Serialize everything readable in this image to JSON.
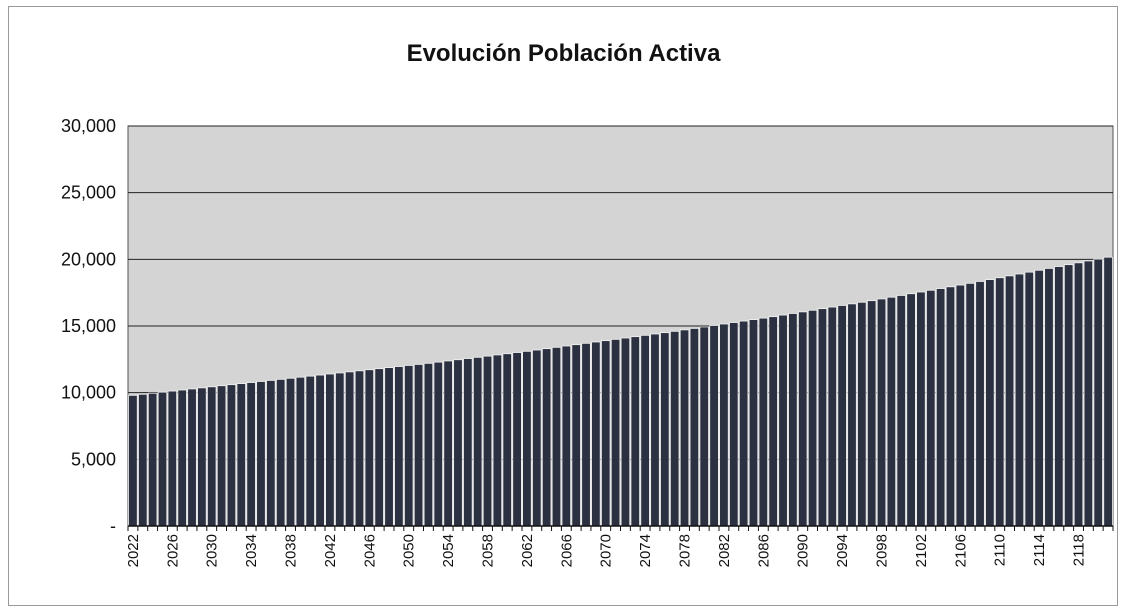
{
  "chart_data": {
    "type": "bar",
    "title": "Evolución Población Activa",
    "xlabel": "",
    "ylabel": "",
    "ylim": [
      0,
      30000
    ],
    "yticks": [
      {
        "value": 0,
        "label": "-"
      },
      {
        "value": 5000,
        "label": "5,000"
      },
      {
        "value": 10000,
        "label": "10,000"
      },
      {
        "value": 15000,
        "label": "15,000"
      },
      {
        "value": 20000,
        "label": "20,000"
      },
      {
        "value": 25000,
        "label": "25,000"
      },
      {
        "value": 30000,
        "label": "30,000"
      }
    ],
    "x_tick_labels": [
      "2022",
      "2026",
      "2030",
      "2034",
      "2038",
      "2042",
      "2046",
      "2050",
      "2054",
      "2058",
      "2062",
      "2066",
      "2070",
      "2074",
      "2078",
      "2082",
      "2086",
      "2090",
      "2094",
      "2098",
      "2102",
      "2106",
      "2110",
      "2114",
      "2118"
    ],
    "x_start": 2022,
    "x_end": 2121,
    "grid": true,
    "legend": "none",
    "values": [
      9800,
      9880,
      9960,
      10040,
      10120,
      10200,
      10280,
      10360,
      10440,
      10520,
      10600,
      10680,
      10760,
      10840,
      10920,
      11000,
      11080,
      11160,
      11240,
      11320,
      11400,
      11480,
      11560,
      11640,
      11720,
      11800,
      11880,
      11960,
      12040,
      12120,
      12200,
      12290,
      12380,
      12470,
      12560,
      12650,
      12740,
      12830,
      12920,
      13010,
      13100,
      13200,
      13300,
      13400,
      13500,
      13600,
      13700,
      13800,
      13900,
      14000,
      14100,
      14200,
      14300,
      14400,
      14500,
      14600,
      14710,
      14820,
      14930,
      15040,
      15150,
      15260,
      15370,
      15480,
      15590,
      15700,
      15820,
      15940,
      16060,
      16180,
      16300,
      16420,
      16540,
      16660,
      16780,
      16900,
      17030,
      17160,
      17290,
      17420,
      17550,
      17680,
      17810,
      17940,
      18070,
      18200,
      18340,
      18480,
      18620,
      18760,
      18900,
      19040,
      19180,
      19320,
      19460,
      19600,
      19740,
      19880,
      20020,
      20160
    ],
    "colors": {
      "plot_bg": "#d4d4d4",
      "bar_fill": "#2b3140",
      "bar_stroke": "#f2f2f2",
      "grid": "#222222"
    }
  }
}
